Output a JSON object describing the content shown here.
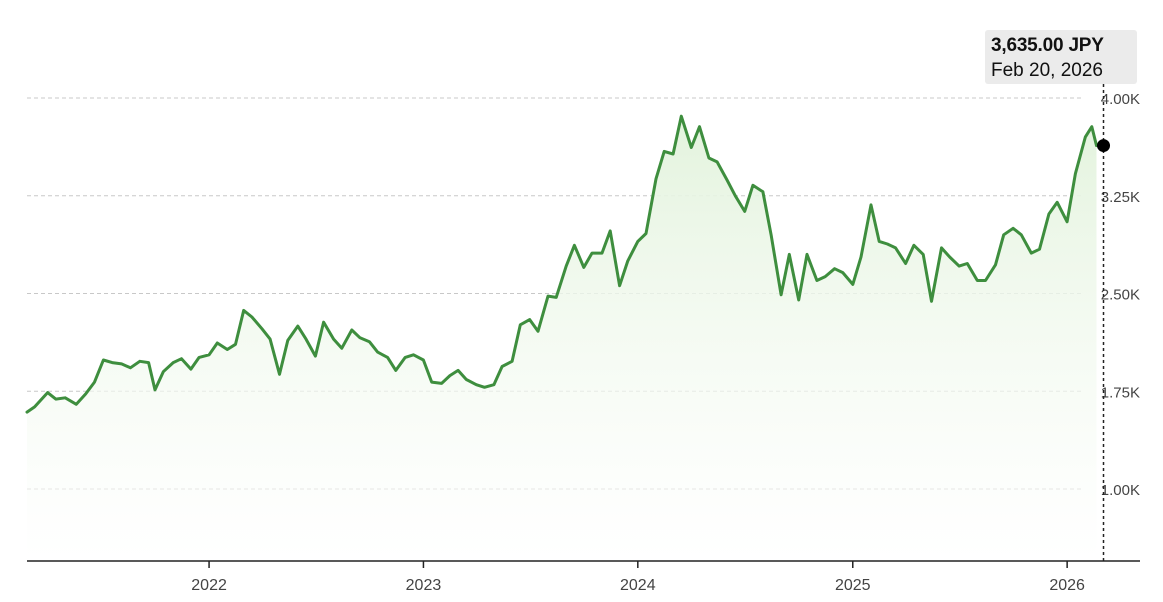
{
  "tooltip": {
    "price": "3,635.00 JPY",
    "date": "Feb 20, 2026"
  },
  "colors": {
    "line": "#3e8e3e",
    "fill_top": "#e8f5e4",
    "grid": "#c8c8c8",
    "axis": "#222222",
    "text": "#444444"
  },
  "chart_data": {
    "type": "area",
    "title": "",
    "xlabel": "",
    "ylabel": "",
    "ylim": [
      500,
      4000
    ],
    "grid": true,
    "y_ticks": [
      {
        "value": 4000,
        "label": "4.00K"
      },
      {
        "value": 3250,
        "label": "3.25K"
      },
      {
        "value": 2500,
        "label": "2.50K"
      },
      {
        "value": 1750,
        "label": "1.75K"
      },
      {
        "value": 1000,
        "label": "1.00K"
      }
    ],
    "x_ticks": [
      {
        "value": "2022-01-01",
        "label": "2022"
      },
      {
        "value": "2023-01-01",
        "label": "2023"
      },
      {
        "value": "2024-01-01",
        "label": "2024"
      },
      {
        "value": "2025-01-01",
        "label": "2025"
      },
      {
        "value": "2026-01-01",
        "label": "2026"
      }
    ],
    "highlight": {
      "x": "2026-02-20",
      "y": 3635
    },
    "series": [
      {
        "x": [
          "2021-02-25",
          "2021-03-10",
          "2021-04-01",
          "2021-04-15",
          "2021-05-01",
          "2021-05-20",
          "2021-06-05",
          "2021-06-20",
          "2021-07-05",
          "2021-07-20",
          "2021-08-05",
          "2021-08-20",
          "2021-09-05",
          "2021-09-20",
          "2021-10-01",
          "2021-10-15",
          "2021-11-01",
          "2021-11-15",
          "2021-12-01",
          "2021-12-15",
          "2022-01-01",
          "2022-01-15",
          "2022-02-01",
          "2022-02-15",
          "2022-03-01",
          "2022-03-15",
          "2022-04-01",
          "2022-04-15",
          "2022-05-01",
          "2022-05-15",
          "2022-06-01",
          "2022-06-15",
          "2022-07-01",
          "2022-07-15",
          "2022-08-01",
          "2022-08-15",
          "2022-09-01",
          "2022-09-15",
          "2022-10-01",
          "2022-10-15",
          "2022-11-01",
          "2022-11-15",
          "2022-12-01",
          "2022-12-15",
          "2023-01-01",
          "2023-01-15",
          "2023-02-01",
          "2023-02-15",
          "2023-03-01",
          "2023-03-15",
          "2023-04-01",
          "2023-04-15",
          "2023-05-01",
          "2023-05-15",
          "2023-06-01",
          "2023-06-15",
          "2023-07-01",
          "2023-07-15",
          "2023-08-01",
          "2023-08-15",
          "2023-09-01",
          "2023-09-15",
          "2023-10-01",
          "2023-10-15",
          "2023-11-01",
          "2023-11-15",
          "2023-12-01",
          "2023-12-15",
          "2024-01-01",
          "2024-01-15",
          "2024-02-01",
          "2024-02-15",
          "2024-03-01",
          "2024-03-15",
          "2024-04-01",
          "2024-04-15",
          "2024-05-01",
          "2024-05-15",
          "2024-06-01",
          "2024-06-15",
          "2024-07-01",
          "2024-07-15",
          "2024-08-01",
          "2024-08-15",
          "2024-09-01",
          "2024-09-15",
          "2024-10-01",
          "2024-10-15",
          "2024-11-01",
          "2024-11-15",
          "2024-12-01",
          "2024-12-15",
          "2025-01-01",
          "2025-01-15",
          "2025-02-01",
          "2025-02-15",
          "2025-03-01",
          "2025-03-15",
          "2025-04-01",
          "2025-04-15",
          "2025-05-01",
          "2025-05-15",
          "2025-06-01",
          "2025-06-15",
          "2025-07-01",
          "2025-07-15",
          "2025-08-01",
          "2025-08-15",
          "2025-09-01",
          "2025-09-15",
          "2025-10-01",
          "2025-10-15",
          "2025-11-01",
          "2025-11-15",
          "2025-12-01",
          "2025-12-15",
          "2026-01-01",
          "2026-01-15",
          "2026-02-01",
          "2026-02-12",
          "2026-02-20"
        ],
        "values": [
          1590,
          1630,
          1740,
          1690,
          1700,
          1650,
          1730,
          1820,
          1990,
          1970,
          1960,
          1930,
          1980,
          1970,
          1760,
          1900,
          1970,
          2000,
          1920,
          2010,
          2030,
          2120,
          2070,
          2110,
          2370,
          2320,
          2230,
          2150,
          1880,
          2140,
          2250,
          2150,
          2020,
          2280,
          2150,
          2080,
          2220,
          2160,
          2130,
          2050,
          2010,
          1910,
          2010,
          2030,
          1990,
          1820,
          1810,
          1870,
          1910,
          1840,
          1800,
          1780,
          1800,
          1940,
          1980,
          2260,
          2300,
          2210,
          2480,
          2470,
          2710,
          2870,
          2700,
          2810,
          2810,
          2980,
          2560,
          2750,
          2900,
          2960,
          3380,
          3590,
          3570,
          3860,
          3620,
          3780,
          3540,
          3510,
          3370,
          3250,
          3130,
          3330,
          3280,
          2950,
          2490,
          2800,
          2450,
          2800,
          2600,
          2630,
          2690,
          2660,
          2570,
          2780,
          3180,
          2900,
          2880,
          2850,
          2730,
          2870,
          2800,
          2440,
          2850,
          2780,
          2710,
          2730,
          2600,
          2600,
          2720,
          2950,
          3000,
          2950,
          2810,
          2840,
          3110,
          3200,
          3050,
          3420,
          3700,
          3780,
          3635
        ]
      }
    ]
  }
}
